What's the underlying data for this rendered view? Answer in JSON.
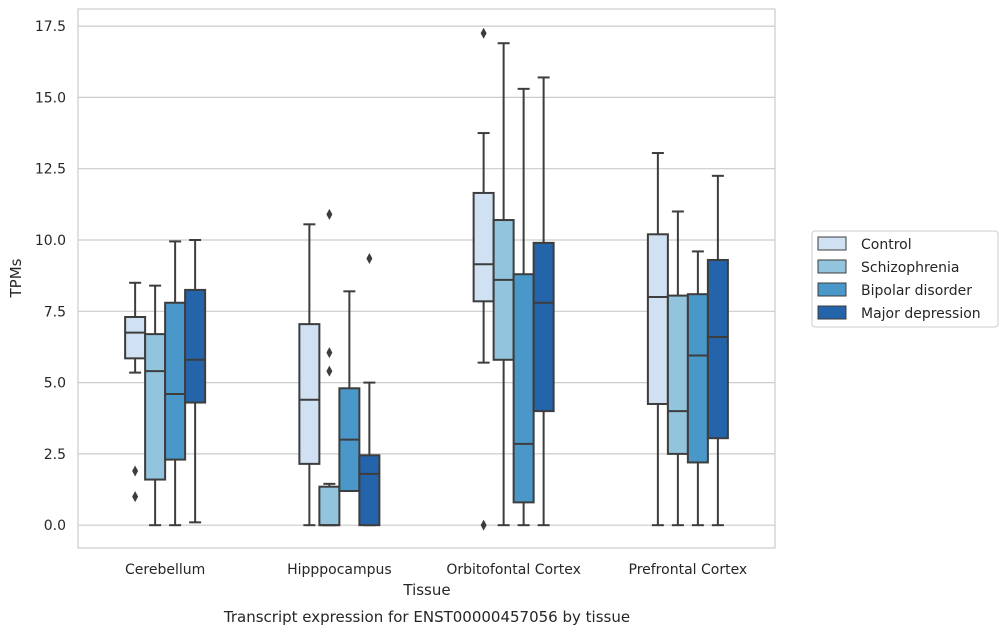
{
  "chart_data": {
    "type": "box",
    "caption": "Transcript expression for ENST00000457056 by tissue",
    "xlabel": "Tissue",
    "ylabel": "TPMs",
    "ylim": [
      -0.8,
      18.1
    ],
    "yticks": [
      "0.0",
      "2.5",
      "5.0",
      "7.5",
      "10.0",
      "12.5",
      "15.0",
      "17.5"
    ],
    "ytick_values": [
      0,
      2.5,
      5,
      7.5,
      10,
      12.5,
      15,
      17.5
    ],
    "grid": "horizontal",
    "legend_position": "right",
    "categories": [
      "Cerebellum",
      "Hipppocampus",
      "Orbitofontal Cortex",
      "Prefrontal Cortex"
    ],
    "series": [
      {
        "name": "Control",
        "color": "#cfe1f2",
        "boxes": [
          {
            "whislo": 5.35,
            "q1": 5.85,
            "med": 6.75,
            "q3": 7.3,
            "whishi": 8.5,
            "fliers": [
              1.9,
              1.0
            ]
          },
          {
            "whislo": 0.0,
            "q1": 2.15,
            "med": 4.4,
            "q3": 7.05,
            "whishi": 10.55,
            "fliers": []
          },
          {
            "whislo": 5.7,
            "q1": 7.85,
            "med": 9.15,
            "q3": 11.65,
            "whishi": 13.75,
            "fliers": [
              17.25,
              0.0
            ]
          },
          {
            "whislo": 0.0,
            "q1": 4.25,
            "med": 8.0,
            "q3": 10.2,
            "whishi": 13.05,
            "fliers": []
          }
        ]
      },
      {
        "name": "Schizophrenia",
        "color": "#93c4de",
        "boxes": [
          {
            "whislo": 0.0,
            "q1": 1.6,
            "med": 5.4,
            "q3": 6.7,
            "whishi": 8.4,
            "fliers": []
          },
          {
            "whislo": 0.0,
            "q1": 0.0,
            "med": 0.0,
            "q3": 1.35,
            "whishi": 1.45,
            "fliers": [
              10.9,
              6.05,
              5.4
            ]
          },
          {
            "whislo": 0.0,
            "q1": 5.8,
            "med": 8.6,
            "q3": 10.7,
            "whishi": 16.9,
            "fliers": []
          },
          {
            "whislo": 0.0,
            "q1": 2.5,
            "med": 4.0,
            "q3": 8.05,
            "whishi": 11.0,
            "fliers": []
          }
        ]
      },
      {
        "name": "Bipolar disorder",
        "color": "#4a98c9",
        "boxes": [
          {
            "whislo": 0.0,
            "q1": 2.3,
            "med": 4.6,
            "q3": 7.8,
            "whishi": 9.95,
            "fliers": []
          },
          {
            "whislo": 1.2,
            "q1": 1.2,
            "med": 3.0,
            "q3": 4.8,
            "whishi": 8.2,
            "fliers": []
          },
          {
            "whislo": 0.0,
            "q1": 0.8,
            "med": 2.85,
            "q3": 8.8,
            "whishi": 15.3,
            "fliers": []
          },
          {
            "whislo": 0.0,
            "q1": 2.2,
            "med": 5.95,
            "q3": 8.1,
            "whishi": 9.6,
            "fliers": []
          }
        ]
      },
      {
        "name": "Major depression",
        "color": "#2464ab",
        "boxes": [
          {
            "whislo": 0.1,
            "q1": 4.3,
            "med": 5.8,
            "q3": 8.25,
            "whishi": 10.0,
            "fliers": []
          },
          {
            "whislo": 0.0,
            "q1": 0.0,
            "med": 1.8,
            "q3": 2.45,
            "whishi": 5.0,
            "fliers": [
              9.35
            ]
          },
          {
            "whislo": 0.0,
            "q1": 4.0,
            "med": 7.8,
            "q3": 9.9,
            "whishi": 15.7,
            "fliers": []
          },
          {
            "whislo": 0.0,
            "q1": 3.05,
            "med": 6.6,
            "q3": 9.3,
            "whishi": 12.25,
            "fliers": []
          }
        ]
      }
    ]
  }
}
